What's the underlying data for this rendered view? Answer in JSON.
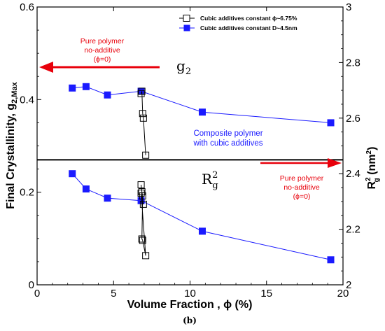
{
  "chart_data": {
    "type": "scatter",
    "xlabel": "Volume Fraction , ϕ (%)",
    "ylabel_left": "Final Crystallinity, g",
    "ylabel_left_sub": "2,Max",
    "ylabel_right": "R",
    "ylabel_right_sup": "2",
    "ylabel_right_sub": "g",
    "ylabel_right_unit_open": " (nm",
    "ylabel_right_unit_sup": "2",
    "ylabel_right_unit_close": ")",
    "xlim": [
      0,
      20
    ],
    "ylim_left": [
      0,
      0.6
    ],
    "ylim_right": [
      2.0,
      3.0
    ],
    "x_ticks": [
      "0",
      "5",
      "10",
      "15",
      "20"
    ],
    "y_left_ticks": [
      "0",
      "0.2",
      "0.4",
      "0.6"
    ],
    "y_right_ticks": [
      "2",
      "2.2",
      "2.4",
      "2.6",
      "2.8",
      "3"
    ],
    "series": [
      {
        "name": "Cubic additives constant ϕ~6.75%",
        "marker": "open-square",
        "color": "#000000",
        "g2_points": [
          [
            6.8,
            0.413
          ],
          [
            6.85,
            0.418
          ],
          [
            6.9,
            0.37
          ],
          [
            6.95,
            0.36
          ],
          [
            7.1,
            0.28
          ]
        ],
        "rg2_points": [
          [
            6.8,
            2.36
          ],
          [
            6.85,
            2.335
          ],
          [
            6.9,
            2.32
          ],
          [
            6.85,
            2.165
          ],
          [
            6.9,
            2.16
          ],
          [
            7.1,
            2.105
          ],
          [
            6.8,
            2.33
          ],
          [
            6.95,
            2.29
          ]
        ]
      },
      {
        "name": "Cubic additives constant D~4.5nm",
        "marker": "filled-square",
        "color": "#1a1aff",
        "g2_points": [
          [
            2.3,
            0.425
          ],
          [
            3.2,
            0.428
          ],
          [
            4.6,
            0.41
          ],
          [
            6.8,
            0.418
          ],
          [
            10.8,
            0.373
          ],
          [
            19.2,
            0.35
          ]
        ],
        "rg2_points": [
          [
            2.3,
            2.4
          ],
          [
            3.2,
            2.345
          ],
          [
            4.6,
            2.312
          ],
          [
            6.8,
            2.303
          ],
          [
            10.8,
            2.193
          ],
          [
            19.2,
            2.09
          ]
        ]
      }
    ],
    "divider_y_left": 0.27,
    "panel_labels": {
      "upper_main": "g",
      "upper_sub": "2",
      "lower_main": "R",
      "lower_sup": "2",
      "lower_sub": "g"
    },
    "annotations": {
      "left_arrow_lines": [
        "Pure polymer",
        "no-additive",
        "(ϕ=0)"
      ],
      "right_arrow_lines": [
        "Pure polymer",
        "no-additive",
        "(ϕ=0)"
      ],
      "composite_lines": [
        "Composite polymer",
        "with cubic additives"
      ]
    },
    "caption": "(b)",
    "colors": {
      "arrow": "#e8000b",
      "annotation_blue": "#1a1aff",
      "series_d": "#1a1aff"
    }
  }
}
